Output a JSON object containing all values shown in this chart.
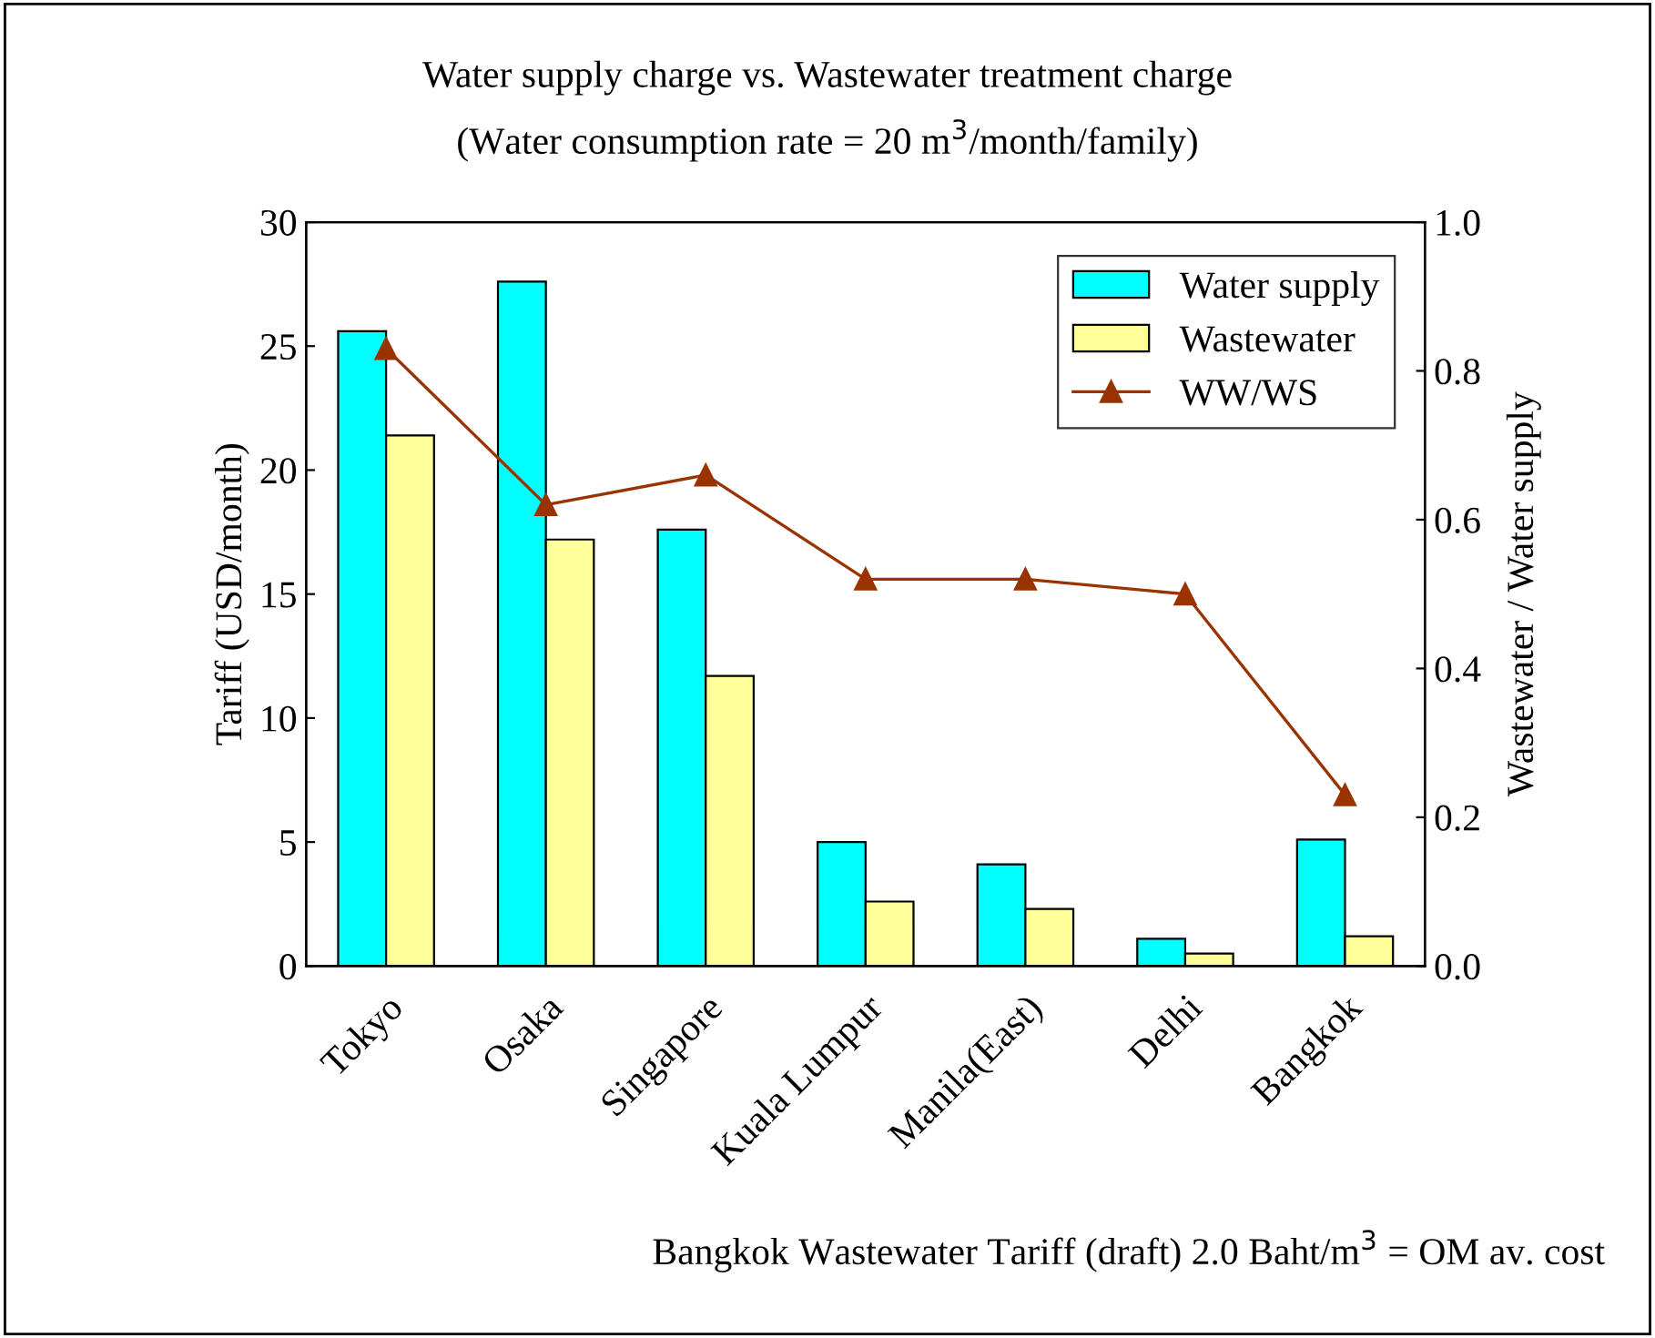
{
  "chart_data": {
    "type": "bar",
    "title": "Water supply charge vs. Wastewater treatment charge",
    "subtitle": "(Water consumption rate = 20 m$^{3}$/month/family)",
    "ylabel": "Tariff (USD/month)",
    "y2label": "Wastewater / Water supply",
    "categories": [
      "Tokyo",
      "Osaka",
      "Singapore",
      "Kuala Lumpur",
      "Manila(East)",
      "Delhi",
      "Bangkok"
    ],
    "series": [
      {
        "name": "Water supply",
        "color": "#00ffff",
        "values": [
          25.6,
          27.6,
          17.6,
          5.0,
          4.1,
          1.1,
          5.1
        ]
      },
      {
        "name": "Wastewater",
        "color": "#ffff99",
        "values": [
          21.4,
          17.2,
          11.7,
          2.6,
          2.3,
          0.5,
          1.2
        ]
      },
      {
        "name": "WW/WS",
        "type": "line",
        "axis": "y2",
        "color": "#993300",
        "marker": "triangle",
        "values": [
          0.83,
          0.62,
          0.66,
          0.52,
          0.52,
          0.5,
          0.23
        ]
      }
    ],
    "ylim": [
      0,
      30
    ],
    "yticks": [
      0,
      5,
      10,
      15,
      20,
      25,
      30
    ],
    "y2lim": [
      0,
      1.0
    ],
    "y2ticks": [
      {
        "value": 0,
        "label": "0.0"
      },
      {
        "value": 0.2,
        "label": "0.2"
      },
      {
        "value": 0.4,
        "label": "0.4"
      },
      {
        "value": 0.6,
        "label": "0.6"
      },
      {
        "value": 0.8,
        "label": "0.8"
      },
      {
        "value": 1.0,
        "label": "1.0"
      }
    ],
    "legend": "top right",
    "grid": false,
    "annotations": [
      "Bangkok Wastewater Tariff (draft) 2.0 Baht/m$^{3}$ = OM av. cost"
    ]
  }
}
